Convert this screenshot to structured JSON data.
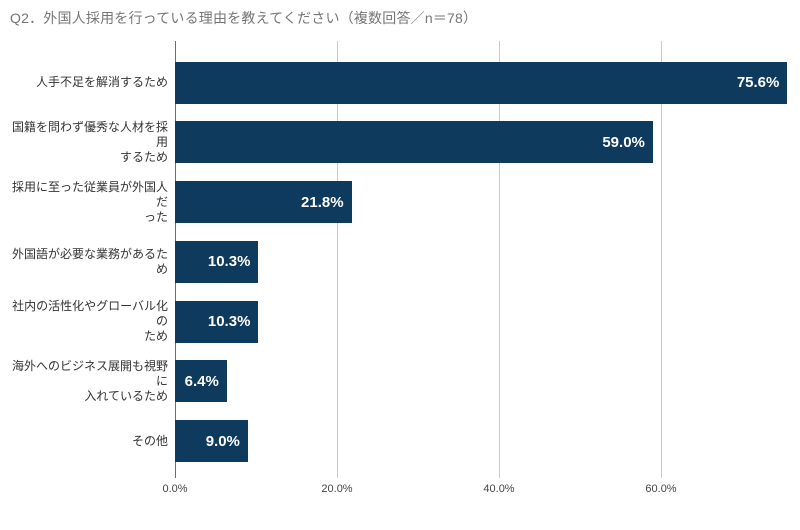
{
  "title": "Q2．外国人採用を行っている理由を教えてください（複数回答／n＝78）",
  "chart_data": {
    "type": "bar",
    "orientation": "horizontal",
    "title": "Q2．外国人採用を行っている理由を教えてください（複数回答／n＝78）",
    "categories": [
      "人手不足を解消するため",
      "国籍を問わず優秀な人材を採用\nするため",
      "採用に至った従業員が外国人だ\nった",
      "外国語が必要な業務があるため",
      "社内の活性化やグローバル化の\nため",
      "海外へのビジネス展開も視野に\n入れているため",
      "その他"
    ],
    "values": [
      75.6,
      59.0,
      21.8,
      10.3,
      10.3,
      6.4,
      9.0
    ],
    "value_labels": [
      "75.6%",
      "59.0%",
      "21.8%",
      "10.3%",
      "10.3%",
      "6.4%",
      "9.0%"
    ],
    "x_ticks": [
      {
        "value": 0,
        "label": "0.0%"
      },
      {
        "value": 20,
        "label": "20.0%"
      },
      {
        "value": 40,
        "label": "40.0%"
      },
      {
        "value": 60,
        "label": "60.0%"
      }
    ],
    "xlim": [
      0,
      77.2
    ],
    "xlabel": "",
    "ylabel": "",
    "legend": "none",
    "grid": true,
    "colors": {
      "bar": "#0e3a5e",
      "value_label": "#ffffff",
      "gridline": "#cccccc",
      "axis_line": "#6e6e6e",
      "title": "#757575",
      "tick_label": "#444444",
      "category_label": "#333333"
    }
  }
}
